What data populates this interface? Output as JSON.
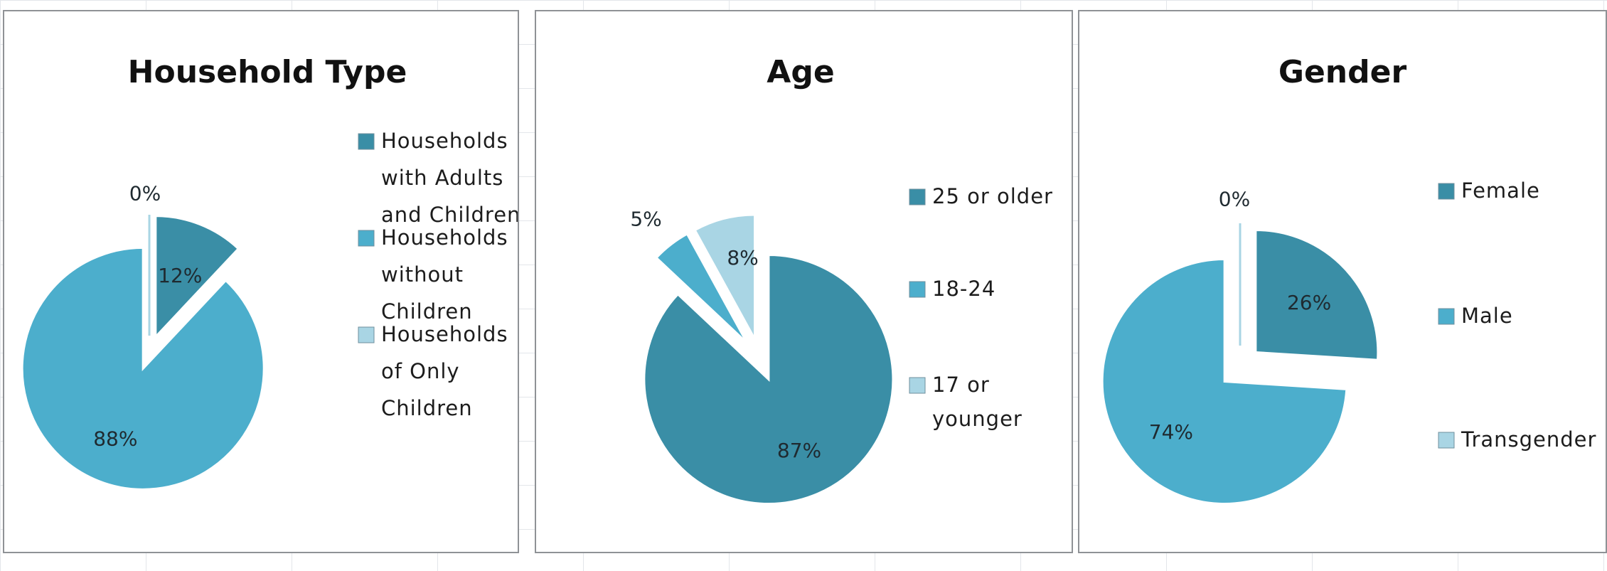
{
  "colors": {
    "series1": "#3a8ea6",
    "series2": "#4caecc",
    "series3": "#a9d5e4",
    "edge": "#ffffff"
  },
  "chart_data": [
    {
      "type": "pie",
      "title": "Household Type",
      "categories": [
        "Households with Adults and Children",
        "Households without Children",
        "Households of Only Children"
      ],
      "legend_lines": [
        [
          "Households",
          "with Adults",
          "and Children"
        ],
        [
          "Households",
          "without",
          "Children"
        ],
        [
          "Households",
          "of Only",
          "Children"
        ]
      ],
      "values": [
        12,
        88,
        0
      ],
      "data_labels": [
        "12%",
        "88%",
        "0%"
      ],
      "exploded": true,
      "legend_position": "right"
    },
    {
      "type": "pie",
      "title": "Age",
      "categories": [
        "25 or older",
        "18-24",
        "17 or younger"
      ],
      "legend_lines": [
        [
          "25 or older"
        ],
        [
          "18-24"
        ],
        [
          "17 or",
          "younger"
        ]
      ],
      "values": [
        87,
        5,
        8
      ],
      "data_labels": [
        "87%",
        "5%",
        "8%"
      ],
      "exploded": true,
      "legend_position": "right"
    },
    {
      "type": "pie",
      "title": "Gender",
      "categories": [
        "Female",
        "Male",
        "Transgender"
      ],
      "legend_lines": [
        [
          "Female"
        ],
        [
          "Male"
        ],
        [
          "Transgender"
        ]
      ],
      "values": [
        26,
        74,
        0
      ],
      "data_labels": [
        "26%",
        "74%",
        "0%"
      ],
      "exploded": true,
      "legend_position": "right"
    }
  ]
}
